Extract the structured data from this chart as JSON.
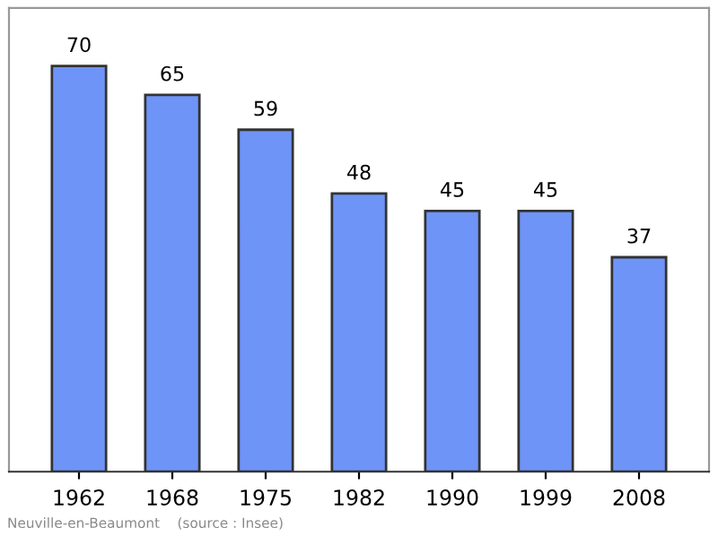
{
  "chart_data": {
    "type": "bar",
    "categories": [
      "1962",
      "1968",
      "1975",
      "1982",
      "1990",
      "1999",
      "2008"
    ],
    "values": [
      70,
      65,
      59,
      48,
      45,
      45,
      37
    ],
    "color": "#6f94f7",
    "ylim": [
      0,
      80
    ],
    "data_labels": true,
    "grid": false,
    "annotations": [
      "Neuville-en-Beaumont    (source : Insee)"
    ]
  }
}
